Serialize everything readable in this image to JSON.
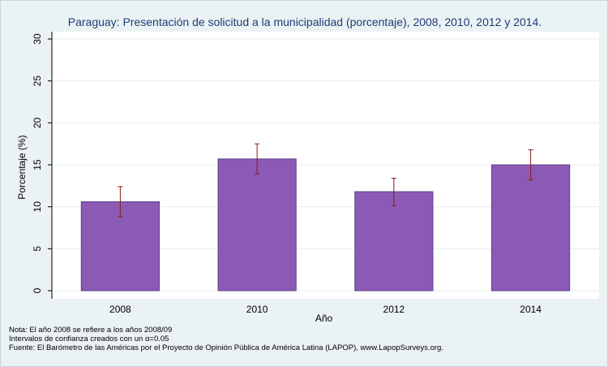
{
  "chart_data": {
    "type": "bar",
    "title": "Paraguay: Presentación de solicitud a la municipalidad (porcentaje), 2008, 2010, 2012 y 2014.",
    "xlabel": "Año",
    "ylabel": "Porcentaje (%)",
    "categories": [
      "2008",
      "2010",
      "2012",
      "2014"
    ],
    "values": [
      10.6,
      15.7,
      11.8,
      15.0
    ],
    "ci_low": [
      8.8,
      13.9,
      10.1,
      13.2
    ],
    "ci_high": [
      12.4,
      17.5,
      13.4,
      16.8
    ],
    "ylim": [
      0,
      30
    ],
    "yticks": [
      "0",
      "5",
      "10",
      "15",
      "20",
      "25",
      "30"
    ],
    "grid": true,
    "colors": {
      "bar": "#8b5ab4",
      "bar_edge": "#5e3f8a",
      "error_bar": "#8b1a1a",
      "plot_bg": "#ffffff",
      "title": "#1e3c78"
    }
  },
  "notes": [
    "Nota: El año 2008 se refiere a los años 2008/09",
    "Intervalos de confianza creados con un α=0.05",
    "Fuente: El Barómetro de las Américas por el Proyecto de Opinión Pública de América Latina (LAPOP), www.LapopSurveys.org."
  ]
}
